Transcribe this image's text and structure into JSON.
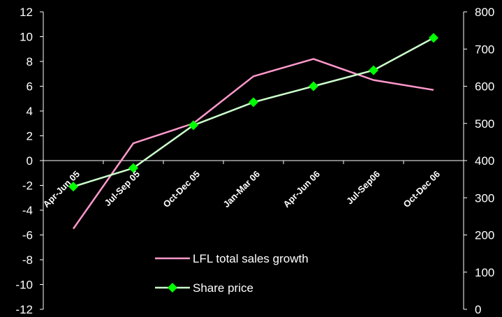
{
  "chart_data": {
    "type": "line",
    "categories": [
      "Apr-Jun 05",
      "Jul-Sep 05",
      "Oct-Dec 05",
      "Jan-Mar 06",
      "Apr-Jun 06",
      "Jul-Sep06",
      "Oct-Dec 06"
    ],
    "series": [
      {
        "name": "LFL total sales growth",
        "axis": "left",
        "color": "#ff99cc",
        "marker": "none",
        "values": [
          -5.5,
          1.4,
          3.0,
          6.8,
          8.2,
          6.5,
          5.7
        ]
      },
      {
        "name": "Share price",
        "axis": "right",
        "color": "#ccffcc",
        "marker": "diamond",
        "marker_color": "#00ff00",
        "values": [
          330,
          380,
          495,
          557,
          600,
          643,
          730
        ]
      }
    ],
    "y_left": {
      "min": -12,
      "max": 12,
      "step": 2,
      "ticks": [
        "12",
        "10",
        "8",
        "6",
        "4",
        "2",
        "0",
        "-2",
        "-4",
        "-6",
        "-8",
        "-10",
        "-12"
      ]
    },
    "y_right": {
      "min": 0,
      "max": 800,
      "step": 100,
      "ticks": [
        "800",
        "700",
        "600",
        "500",
        "400",
        "300",
        "200",
        "100",
        "0"
      ]
    },
    "title": "",
    "xlabel": "",
    "ylabel": "",
    "grid": false,
    "legend_position": "bottom-center"
  }
}
